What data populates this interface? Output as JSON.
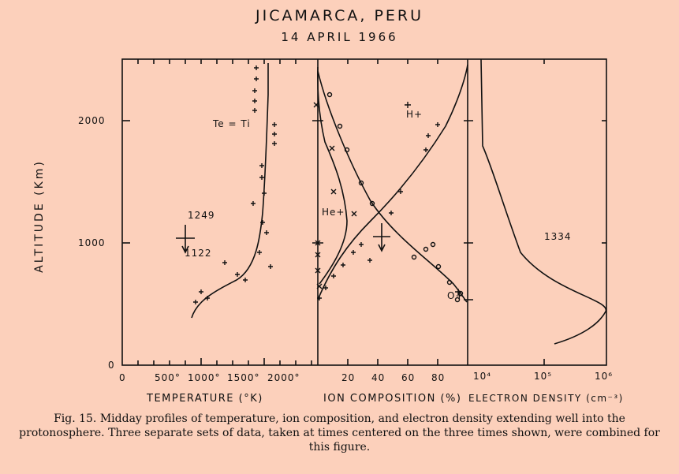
{
  "header": {
    "title": "JICAMARCA, PERU",
    "date": "14  APRIL 1966"
  },
  "y_axis": {
    "label": "ALTITUDE  (Km)",
    "ticks": [
      "2000",
      "1000",
      "0"
    ]
  },
  "panels": {
    "temperature": {
      "title": "TEMPERATURE (°K)",
      "ticks": [
        "0",
        "500°",
        "1000°",
        "1500°",
        "2000°"
      ],
      "annotation": "Te = Ti"
    },
    "ion_composition": {
      "title": "ION COMPOSITION (%)",
      "ticks": [
        "20",
        "40",
        "60",
        "80"
      ],
      "labels": [
        "H+",
        "He+",
        "O+"
      ]
    },
    "electron_density": {
      "title": "ELECTRON DENSITY (cm⁻³)",
      "ticks": [
        "10⁴",
        "10⁵",
        "10⁶"
      ]
    }
  },
  "time_labels": [
    "1249",
    "1122",
    "1334"
  ],
  "caption": "Fig. 15. Midday profiles of temperature, ion composition, and electron density extending well into the protonosphere. Three separate sets of data, taken at times centered on the three times shown, were combined for this figure.",
  "colors": {
    "background": "#fcd0bb",
    "ink": "#111111"
  }
}
